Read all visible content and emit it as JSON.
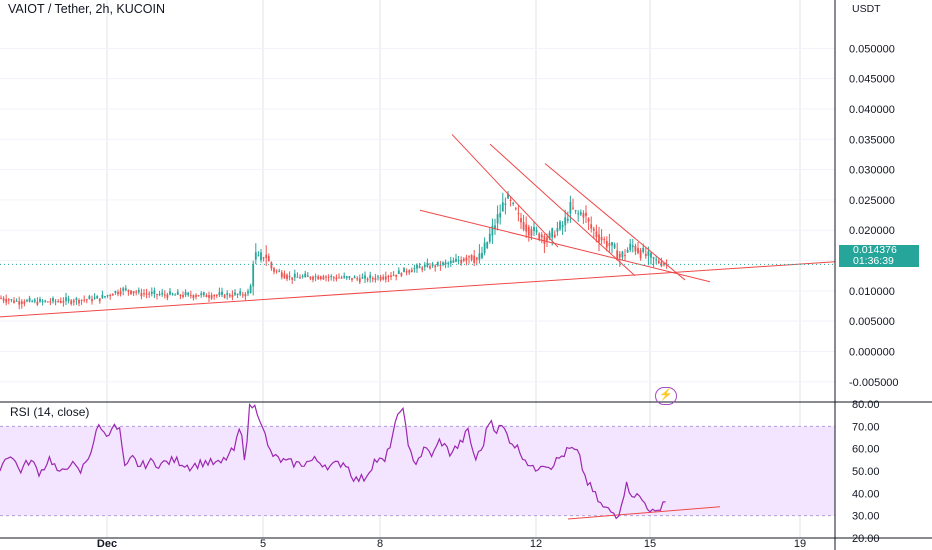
{
  "header": {
    "title": "VAIOT / Tether, 2h, KUCOIN",
    "unit": "USDT"
  },
  "colors": {
    "up": "#26a69a",
    "down": "#ef5350",
    "trend": "#f04848",
    "rsi": "#9c27b0",
    "rsi_band": "#f3e5ff",
    "grid": "#e0e3eb"
  },
  "last_price": {
    "price": "0.014376",
    "countdown": "01:36:39"
  },
  "indicator": {
    "title": "RSI (14, close)",
    "icon": "lightning-icon"
  },
  "chart_data": [
    {
      "type": "candlestick",
      "title": "VAIOT / Tether, 2h, KUCOIN",
      "ylabel": "USDT",
      "ylim": [
        -0.008,
        0.055
      ],
      "y_ticks": [
        "0.050000",
        "0.045000",
        "0.040000",
        "0.035000",
        "0.030000",
        "0.025000",
        "0.020000",
        "0.015000",
        "0.010000",
        "0.005000",
        "0.000000",
        "-0.005000"
      ],
      "x_ticks": [
        "Dec",
        "5",
        "8",
        "12",
        "15",
        "19"
      ],
      "price_path": [
        [
          0,
          0.0088
        ],
        [
          15,
          0.0083
        ],
        [
          40,
          0.0082
        ],
        [
          70,
          0.0084
        ],
        [
          100,
          0.0088
        ],
        [
          115,
          0.0098
        ],
        [
          125,
          0.0102
        ],
        [
          140,
          0.0096
        ],
        [
          160,
          0.0094
        ],
        [
          185,
          0.0093
        ],
        [
          215,
          0.0093
        ],
        [
          240,
          0.0094
        ],
        [
          250,
          0.0097
        ],
        [
          254,
          0.0165
        ],
        [
          258,
          0.015
        ],
        [
          265,
          0.0162
        ],
        [
          272,
          0.0135
        ],
        [
          280,
          0.013
        ],
        [
          290,
          0.0122
        ],
        [
          305,
          0.0123
        ],
        [
          320,
          0.0124
        ],
        [
          335,
          0.0122
        ],
        [
          350,
          0.0121
        ],
        [
          365,
          0.012
        ],
        [
          380,
          0.0123
        ],
        [
          395,
          0.0127
        ],
        [
          405,
          0.0133
        ],
        [
          415,
          0.0137
        ],
        [
          425,
          0.014
        ],
        [
          440,
          0.0143
        ],
        [
          450,
          0.0146
        ],
        [
          460,
          0.0152
        ],
        [
          470,
          0.016
        ],
        [
          478,
          0.015
        ],
        [
          485,
          0.0172
        ],
        [
          492,
          0.02
        ],
        [
          500,
          0.023
        ],
        [
          506,
          0.0255
        ],
        [
          512,
          0.024
        ],
        [
          520,
          0.0215
        ],
        [
          530,
          0.02
        ],
        [
          540,
          0.0192
        ],
        [
          548,
          0.0185
        ],
        [
          556,
          0.02
        ],
        [
          564,
          0.021
        ],
        [
          570,
          0.0238
        ],
        [
          577,
          0.0225
        ],
        [
          583,
          0.023
        ],
        [
          590,
          0.0205
        ],
        [
          598,
          0.019
        ],
        [
          606,
          0.018
        ],
        [
          614,
          0.0168
        ],
        [
          620,
          0.0155
        ],
        [
          626,
          0.0165
        ],
        [
          632,
          0.0175
        ],
        [
          640,
          0.0165
        ],
        [
          648,
          0.0155
        ],
        [
          656,
          0.015
        ],
        [
          662,
          0.0145
        ],
        [
          667,
          0.0144
        ]
      ],
      "trendlines": [
        {
          "from": [
            0,
            0.0057
          ],
          "to": [
            835,
            0.0148
          ]
        },
        {
          "from": [
            420,
            0.0233
          ],
          "to": [
            710,
            0.0115
          ]
        },
        {
          "from": [
            452,
            0.0358
          ],
          "to": [
            558,
            0.0172
          ]
        },
        {
          "from": [
            490,
            0.0342
          ],
          "to": [
            635,
            0.0125
          ]
        },
        {
          "from": [
            545,
            0.031
          ],
          "to": [
            685,
            0.0118
          ]
        }
      ]
    },
    {
      "type": "line",
      "title": "RSI (14, close)",
      "ylim": [
        20,
        80
      ],
      "y_ticks": [
        "80.00",
        "70.00",
        "60.00",
        "50.00",
        "40.00",
        "30.00",
        "20.00"
      ],
      "band": [
        30,
        70
      ],
      "rsi_path": [
        [
          0,
          52
        ],
        [
          10,
          58
        ],
        [
          20,
          50
        ],
        [
          30,
          55
        ],
        [
          40,
          49
        ],
        [
          50,
          56
        ],
        [
          60,
          48
        ],
        [
          70,
          54
        ],
        [
          80,
          49
        ],
        [
          90,
          58
        ],
        [
          100,
          72
        ],
        [
          105,
          65
        ],
        [
          112,
          70
        ],
        [
          120,
          68
        ],
        [
          125,
          50
        ],
        [
          132,
          56
        ],
        [
          140,
          52
        ],
        [
          150,
          54
        ],
        [
          160,
          53
        ],
        [
          175,
          55
        ],
        [
          190,
          52
        ],
        [
          205,
          54
        ],
        [
          220,
          53
        ],
        [
          235,
          60
        ],
        [
          240,
          70
        ],
        [
          245,
          55
        ],
        [
          250,
          80
        ],
        [
          256,
          78
        ],
        [
          262,
          72
        ],
        [
          268,
          60
        ],
        [
          275,
          56
        ],
        [
          285,
          54
        ],
        [
          300,
          53
        ],
        [
          315,
          55
        ],
        [
          330,
          52
        ],
        [
          345,
          54
        ],
        [
          355,
          46
        ],
        [
          365,
          47
        ],
        [
          375,
          55
        ],
        [
          385,
          54
        ],
        [
          395,
          70
        ],
        [
          403,
          80
        ],
        [
          408,
          60
        ],
        [
          416,
          54
        ],
        [
          425,
          60
        ],
        [
          433,
          57
        ],
        [
          440,
          64
        ],
        [
          450,
          58
        ],
        [
          460,
          62
        ],
        [
          468,
          68
        ],
        [
          475,
          55
        ],
        [
          482,
          60
        ],
        [
          490,
          74
        ],
        [
          496,
          68
        ],
        [
          502,
          70
        ],
        [
          510,
          64
        ],
        [
          518,
          60
        ],
        [
          526,
          55
        ],
        [
          534,
          50
        ],
        [
          542,
          54
        ],
        [
          550,
          52
        ],
        [
          560,
          56
        ],
        [
          570,
          60
        ],
        [
          578,
          58
        ],
        [
          586,
          46
        ],
        [
          594,
          40
        ],
        [
          602,
          34
        ],
        [
          610,
          32
        ],
        [
          618,
          30
        ],
        [
          626,
          44
        ],
        [
          632,
          40
        ],
        [
          640,
          38
        ],
        [
          648,
          34
        ],
        [
          656,
          30
        ],
        [
          662,
          36
        ],
        [
          667,
          37
        ]
      ],
      "trendlines": [
        {
          "from": [
            568,
            28.5
          ],
          "to": [
            720,
            34
          ]
        }
      ]
    }
  ]
}
